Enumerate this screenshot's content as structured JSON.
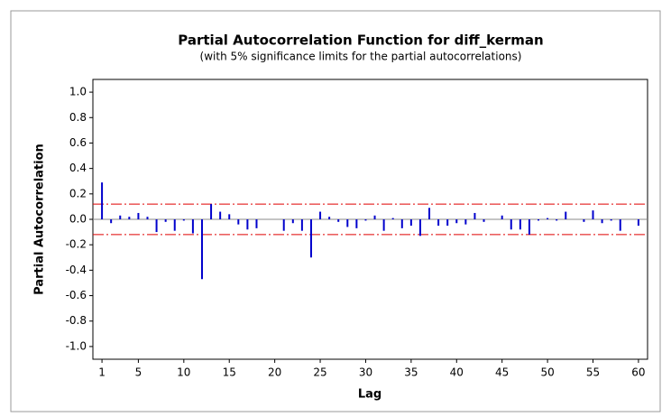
{
  "chart_data": {
    "type": "pacf",
    "title": "Partial Autocorrelation Function for diff_kerman",
    "subtitle": "(with 5% significance limits for the partial autocorrelations)",
    "x_label": "Lag",
    "y_label": "Partial Autocorrelation",
    "x": [
      1,
      2,
      3,
      4,
      5,
      6,
      7,
      8,
      9,
      10,
      11,
      12,
      13,
      14,
      15,
      16,
      17,
      18,
      19,
      20,
      21,
      22,
      23,
      24,
      25,
      26,
      27,
      28,
      29,
      30,
      31,
      32,
      33,
      34,
      35,
      36,
      37,
      38,
      39,
      40,
      41,
      42,
      43,
      44,
      45,
      46,
      47,
      48,
      49,
      50,
      51,
      52,
      53,
      54,
      55,
      56,
      57,
      58,
      59,
      60
    ],
    "values": [
      0.29,
      -0.03,
      0.03,
      0.02,
      0.05,
      0.02,
      -0.1,
      -0.02,
      -0.09,
      -0.01,
      -0.11,
      -0.47,
      0.12,
      0.06,
      0.04,
      -0.04,
      -0.08,
      -0.07,
      0.0,
      0.0,
      -0.09,
      -0.03,
      -0.09,
      -0.3,
      0.06,
      0.02,
      -0.02,
      -0.06,
      -0.07,
      -0.01,
      0.03,
      -0.09,
      0.01,
      -0.07,
      -0.05,
      -0.13,
      0.09,
      -0.05,
      -0.05,
      -0.03,
      -0.04,
      0.05,
      -0.02,
      0.0,
      0.03,
      -0.08,
      -0.08,
      -0.12,
      -0.01,
      0.01,
      -0.01,
      0.06,
      0.0,
      -0.02,
      0.07,
      -0.03,
      -0.01,
      -0.09,
      0.0,
      -0.05
    ],
    "color": "#0000cc",
    "upper_limit": 0.12,
    "lower_limit": -0.12,
    "limit_color": "#e00000",
    "xlim": [
      0,
      61
    ],
    "ylim": [
      -1.1,
      1.1
    ],
    "xticks": [
      1,
      5,
      10,
      15,
      20,
      25,
      30,
      35,
      40,
      45,
      50,
      55,
      60
    ],
    "yticks": [
      {
        "value": 1.0,
        "label": "1.0"
      },
      {
        "value": 0.8,
        "label": "0.8"
      },
      {
        "value": 0.6,
        "label": "0.6"
      },
      {
        "value": 0.4,
        "label": "0.4"
      },
      {
        "value": 0.2,
        "label": "0.2"
      },
      {
        "value": 0.0,
        "label": "0.0"
      },
      {
        "value": -0.2,
        "label": "-0.2"
      },
      {
        "value": -0.4,
        "label": "-0.4"
      },
      {
        "value": -0.6,
        "label": "-0.6"
      },
      {
        "value": -0.8,
        "label": "-0.8"
      },
      {
        "value": -1.0,
        "label": "-1.0"
      }
    ]
  }
}
